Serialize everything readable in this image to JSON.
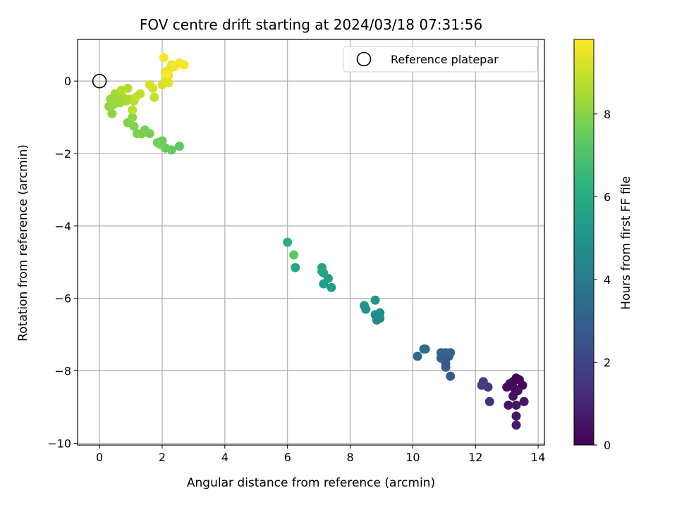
{
  "chart_data": {
    "type": "scatter",
    "title": "FOV centre drift starting at 2024/03/18 07:31:56",
    "xlabel": "Angular distance from reference (arcmin)",
    "ylabel": "Rotation from reference (arcmin)",
    "xlim": [
      -0.7,
      14.2
    ],
    "ylim": [
      -10.05,
      1.15
    ],
    "xticks": [
      0,
      2,
      4,
      6,
      8,
      10,
      12,
      14
    ],
    "yticks": [
      -10,
      -8,
      -6,
      -4,
      -2,
      0
    ],
    "grid": true,
    "legend": {
      "position": "top-right",
      "entries": [
        "Reference platepar"
      ]
    },
    "reference_point": {
      "x": 0,
      "y": 0,
      "label": "Reference platepar",
      "marker": "open-circle"
    },
    "colorbar": {
      "label": "Hours from first FF file",
      "colormap": "viridis",
      "range": [
        0,
        9.8
      ],
      "ticks": [
        0,
        2,
        4,
        6,
        8
      ]
    },
    "points": [
      {
        "x": 13.3,
        "y": -8.2,
        "t": 0.05
      },
      {
        "x": 13.2,
        "y": -8.3,
        "t": 0.1
      },
      {
        "x": 13.4,
        "y": -8.25,
        "t": 0.15
      },
      {
        "x": 13.1,
        "y": -8.35,
        "t": 0.2
      },
      {
        "x": 13.5,
        "y": -8.4,
        "t": 0.25
      },
      {
        "x": 13.0,
        "y": -8.45,
        "t": 0.3
      },
      {
        "x": 13.25,
        "y": -8.5,
        "t": 0.35
      },
      {
        "x": 13.35,
        "y": -8.55,
        "t": 0.4
      },
      {
        "x": 13.2,
        "y": -8.7,
        "t": 0.45
      },
      {
        "x": 13.3,
        "y": -8.95,
        "t": 0.5
      },
      {
        "x": 13.05,
        "y": -8.95,
        "t": 0.55
      },
      {
        "x": 13.55,
        "y": -8.85,
        "t": 0.6
      },
      {
        "x": 13.3,
        "y": -9.25,
        "t": 0.65
      },
      {
        "x": 13.3,
        "y": -9.5,
        "t": 0.7
      },
      {
        "x": 12.45,
        "y": -8.85,
        "t": 1.4
      },
      {
        "x": 12.4,
        "y": -8.45,
        "t": 1.6
      },
      {
        "x": 12.2,
        "y": -8.4,
        "t": 1.7
      },
      {
        "x": 12.25,
        "y": -8.3,
        "t": 1.8
      },
      {
        "x": 11.2,
        "y": -8.15,
        "t": 2.6
      },
      {
        "x": 11.05,
        "y": -7.9,
        "t": 2.7
      },
      {
        "x": 11.05,
        "y": -7.8,
        "t": 2.8
      },
      {
        "x": 10.9,
        "y": -7.65,
        "t": 2.9
      },
      {
        "x": 11.15,
        "y": -7.6,
        "t": 3.0
      },
      {
        "x": 11.05,
        "y": -7.5,
        "t": 3.05
      },
      {
        "x": 10.9,
        "y": -7.5,
        "t": 3.1
      },
      {
        "x": 11.2,
        "y": -7.5,
        "t": 3.15
      },
      {
        "x": 10.4,
        "y": -7.4,
        "t": 3.3
      },
      {
        "x": 10.35,
        "y": -7.4,
        "t": 3.35
      },
      {
        "x": 10.15,
        "y": -7.6,
        "t": 3.4
      },
      {
        "x": 8.85,
        "y": -6.6,
        "t": 4.6
      },
      {
        "x": 8.95,
        "y": -6.55,
        "t": 4.7
      },
      {
        "x": 8.8,
        "y": -6.45,
        "t": 4.8
      },
      {
        "x": 8.95,
        "y": -6.4,
        "t": 4.85
      },
      {
        "x": 8.5,
        "y": -6.3,
        "t": 4.9
      },
      {
        "x": 8.45,
        "y": -6.2,
        "t": 5.0
      },
      {
        "x": 8.8,
        "y": -6.05,
        "t": 5.1
      },
      {
        "x": 7.4,
        "y": -5.7,
        "t": 5.4
      },
      {
        "x": 7.15,
        "y": -5.6,
        "t": 5.5
      },
      {
        "x": 7.3,
        "y": -5.45,
        "t": 5.55
      },
      {
        "x": 7.15,
        "y": -5.3,
        "t": 5.6
      },
      {
        "x": 7.1,
        "y": -5.25,
        "t": 5.65
      },
      {
        "x": 7.1,
        "y": -5.15,
        "t": 5.7
      },
      {
        "x": 6.25,
        "y": -5.15,
        "t": 5.8
      },
      {
        "x": 6.0,
        "y": -4.45,
        "t": 6.2
      },
      {
        "x": 6.2,
        "y": -4.8,
        "t": 7.3
      },
      {
        "x": 2.55,
        "y": -1.8,
        "t": 7.3
      },
      {
        "x": 2.3,
        "y": -1.9,
        "t": 7.4
      },
      {
        "x": 2.1,
        "y": -1.85,
        "t": 7.5
      },
      {
        "x": 2.0,
        "y": -1.65,
        "t": 7.55
      },
      {
        "x": 1.85,
        "y": -1.7,
        "t": 7.6
      },
      {
        "x": 1.95,
        "y": -1.75,
        "t": 7.65
      },
      {
        "x": 1.6,
        "y": -1.45,
        "t": 7.7
      },
      {
        "x": 1.45,
        "y": -1.35,
        "t": 7.75
      },
      {
        "x": 1.35,
        "y": -1.45,
        "t": 7.8
      },
      {
        "x": 1.2,
        "y": -1.45,
        "t": 7.85
      },
      {
        "x": 1.1,
        "y": -1.25,
        "t": 7.9
      },
      {
        "x": 0.9,
        "y": -1.15,
        "t": 7.95
      },
      {
        "x": 1.05,
        "y": -1.0,
        "t": 8.0
      },
      {
        "x": 0.4,
        "y": -0.9,
        "t": 8.1
      },
      {
        "x": 0.3,
        "y": -0.7,
        "t": 8.15
      },
      {
        "x": 0.45,
        "y": -0.65,
        "t": 8.2
      },
      {
        "x": 0.35,
        "y": -0.5,
        "t": 8.25
      },
      {
        "x": 0.55,
        "y": -0.55,
        "t": 8.3
      },
      {
        "x": 0.65,
        "y": -0.6,
        "t": 8.35
      },
      {
        "x": 0.5,
        "y": -0.35,
        "t": 8.4
      },
      {
        "x": 0.75,
        "y": -0.45,
        "t": 8.45
      },
      {
        "x": 0.85,
        "y": -0.55,
        "t": 8.5
      },
      {
        "x": 0.95,
        "y": -0.5,
        "t": 8.55
      },
      {
        "x": 0.9,
        "y": -0.2,
        "t": 8.6
      },
      {
        "x": 0.7,
        "y": -0.25,
        "t": 8.65
      },
      {
        "x": 1.1,
        "y": -0.55,
        "t": 8.7
      },
      {
        "x": 1.05,
        "y": -0.8,
        "t": 8.75
      },
      {
        "x": 1.3,
        "y": -0.35,
        "t": 8.8
      },
      {
        "x": 1.15,
        "y": -0.45,
        "t": 8.85
      },
      {
        "x": 1.75,
        "y": -0.45,
        "t": 9.0
      },
      {
        "x": 1.7,
        "y": -0.2,
        "t": 9.1
      },
      {
        "x": 1.6,
        "y": -0.1,
        "t": 9.2
      },
      {
        "x": 2.0,
        "y": -0.1,
        "t": 9.25
      },
      {
        "x": 2.1,
        "y": 0.0,
        "t": 9.3
      },
      {
        "x": 2.2,
        "y": -0.05,
        "t": 9.35
      },
      {
        "x": 2.2,
        "y": 0.15,
        "t": 9.4
      },
      {
        "x": 2.1,
        "y": 0.25,
        "t": 9.45
      },
      {
        "x": 2.25,
        "y": 0.35,
        "t": 9.5
      },
      {
        "x": 2.3,
        "y": 0.45,
        "t": 9.55
      },
      {
        "x": 2.4,
        "y": 0.4,
        "t": 9.6
      },
      {
        "x": 2.55,
        "y": 0.5,
        "t": 9.65
      },
      {
        "x": 2.7,
        "y": 0.45,
        "t": 9.7
      },
      {
        "x": 2.05,
        "y": 0.65,
        "t": 9.75
      },
      {
        "x": 2.15,
        "y": 0.2,
        "t": 9.8
      }
    ]
  }
}
